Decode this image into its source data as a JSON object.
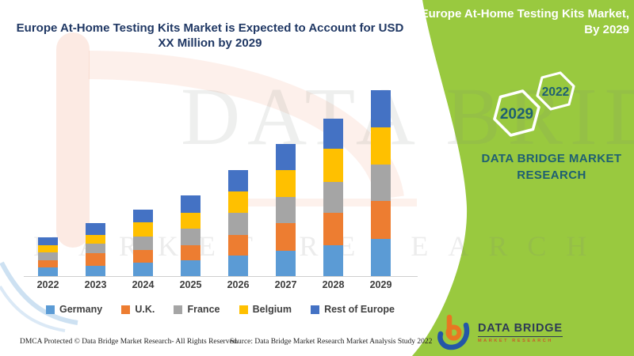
{
  "chart_panel": {
    "title_line1": "Europe At-Home Testing Kits Market is Expected to Account for USD",
    "title_line2": "XX Million by 2029",
    "footer_dmca": "DMCA Protected © Data Bridge Market Research- All Rights Reserved.",
    "footer_source": "Source: Data Bridge Market Research Market Analysis Study 2022"
  },
  "green_panel": {
    "background_color": "#99C93F",
    "title_line1": "Europe At-Home Testing Kits Market,",
    "title_line2": "By 2029",
    "hexagon_large_label": "2029",
    "hexagon_small_label": "2022",
    "brand_line1": "DATA BRIDGE MARKET",
    "brand_line2": "RESEARCH",
    "logo_title": "DATA BRIDGE",
    "logo_subtitle": "MARKET RESEARCH",
    "accent_text_color": "#1E5F72"
  },
  "watermark": {
    "text_top": "DATA BRIDGE",
    "text_bottom": "MARKET RESEARCH"
  },
  "chart_data": {
    "type": "bar",
    "stacked": true,
    "title": "Europe At-Home Testing Kits Market is Expected to Account for USD XX Million by 2029",
    "xlabel": "",
    "ylabel": "",
    "value_axis_visible": false,
    "value_scale": "relative (actual USD values undisclosed as XX)",
    "ylim": [
      0,
      250
    ],
    "grid": false,
    "legend_position": "bottom",
    "categories": [
      "2022",
      "2023",
      "2024",
      "2025",
      "2026",
      "2027",
      "2028",
      "2029"
    ],
    "series": [
      {
        "name": "Germany",
        "color": "#5B9BD5",
        "values": [
          11,
          13,
          17,
          20,
          26,
          32,
          39,
          47
        ]
      },
      {
        "name": "U.K.",
        "color": "#ED7D31",
        "values": [
          9,
          16,
          16,
          19,
          26,
          35,
          41,
          48
        ]
      },
      {
        "name": "France",
        "color": "#A5A5A5",
        "values": [
          10,
          12,
          17,
          21,
          28,
          33,
          39,
          46
        ]
      },
      {
        "name": "Belgium",
        "color": "#FFC000",
        "values": [
          9,
          11,
          18,
          20,
          27,
          34,
          42,
          47
        ]
      },
      {
        "name": "Rest of Europe",
        "color": "#4472C4",
        "values": [
          10,
          15,
          16,
          22,
          27,
          33,
          38,
          47
        ]
      }
    ]
  }
}
